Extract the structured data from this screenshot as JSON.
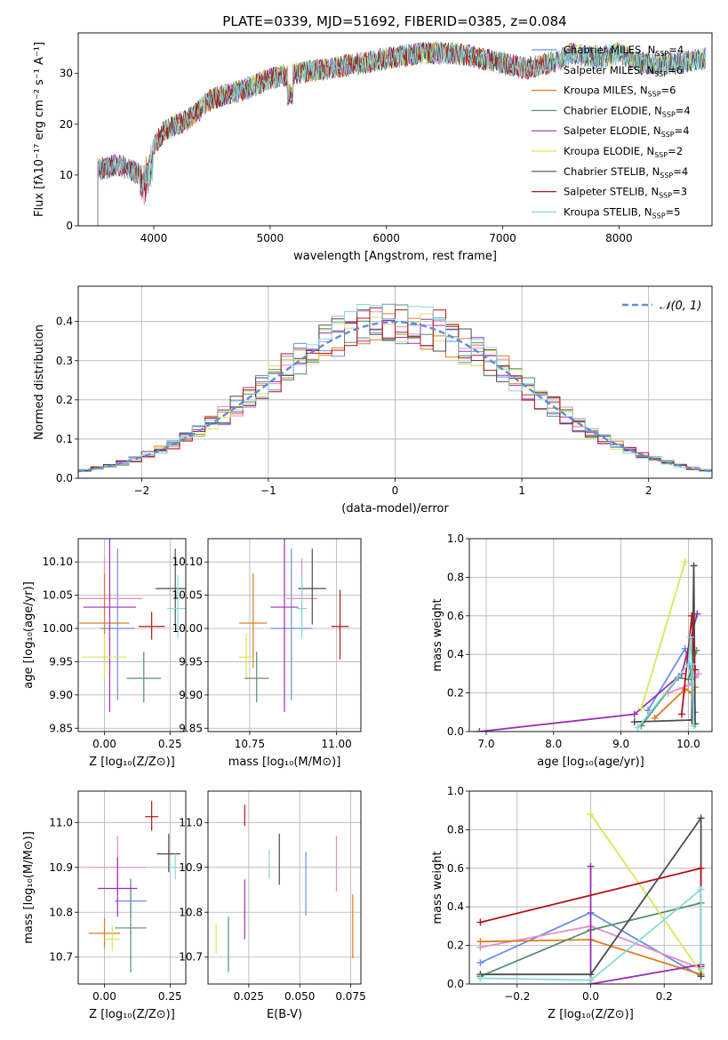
{
  "title": "PLATE=0339, MJD=51692, FIBERID=0385, z=0.084",
  "models": [
    {
      "name": "Chabrier MILES",
      "nssp": "4",
      "color": "#6a8ee8"
    },
    {
      "name": "Salpeter MILES",
      "nssp": "6",
      "color": "#e68ccc"
    },
    {
      "name": "Kroupa MILES",
      "nssp": "6",
      "color": "#e07b20"
    },
    {
      "name": "Chabrier ELODIE",
      "nssp": "4",
      "color": "#55906a"
    },
    {
      "name": "Salpeter ELODIE",
      "nssp": "4",
      "color": "#9b2fb5"
    },
    {
      "name": "Kroupa ELODIE",
      "nssp": "2",
      "color": "#d8e65a"
    },
    {
      "name": "Chabrier STELIB",
      "nssp": "4",
      "color": "#4d4d4d"
    },
    {
      "name": "Salpeter STELIB",
      "nssp": "3",
      "color": "#b51515"
    },
    {
      "name": "Kroupa STELIB",
      "nssp": "5",
      "color": "#85dada"
    }
  ],
  "chart_data": [
    {
      "id": "spectrum",
      "type": "line",
      "xlabel": "wavelength [Angstrom, rest frame]",
      "ylabel": "Flux [fλ10⁻¹⁷ erg cm⁻² s⁻¹ A⁻¹]",
      "xlim": [
        3350,
        8800
      ],
      "ylim": [
        0,
        38
      ],
      "xticks": [
        4000,
        5000,
        6000,
        7000,
        8000
      ],
      "yticks": [
        0,
        10,
        20,
        30
      ],
      "grid": false,
      "legend": "right",
      "continuum": {
        "x": [
          3500,
          3700,
          3900,
          4000,
          4100,
          4300,
          4500,
          4800,
          5000,
          5200,
          5500,
          5800,
          6000,
          6300,
          6600,
          6800,
          7000,
          7200,
          7400,
          7600,
          7800,
          8000,
          8200,
          8500,
          8750
        ],
        "y": [
          11,
          12,
          10,
          16,
          19,
          21,
          25,
          27,
          29,
          30,
          31,
          32,
          33,
          34,
          34,
          33,
          32,
          31,
          32,
          34,
          33,
          34,
          32,
          32,
          33
        ]
      }
    },
    {
      "id": "histogram",
      "type": "bar",
      "xlabel": "(data-model)/error",
      "ylabel": "Normed distribution",
      "xlim": [
        -2.5,
        2.5
      ],
      "ylim": [
        0,
        0.49
      ],
      "xticks": [
        -2,
        -1,
        0,
        1,
        2
      ],
      "yticks": [
        0.0,
        0.1,
        0.2,
        0.3,
        0.4
      ],
      "grid": true,
      "legend": "top-right",
      "curve_label": "𝒩(0, 1)",
      "bin_width": 0.1
    },
    {
      "id": "age_vs_Z",
      "type": "scatter",
      "xlabel": "Z [log₁₀(Z/Z⊙)]",
      "ylabel": "age  [log₁₀(age/yr)]",
      "xlim": [
        -0.1,
        0.31
      ],
      "ylim": [
        9.845,
        10.135
      ],
      "xticks": [
        0.0,
        0.25
      ],
      "yticks": [
        9.85,
        9.9,
        9.95,
        10.0,
        10.05,
        10.1
      ],
      "grid": true,
      "points": [
        [
          0.05,
          10.0,
          0.065,
          0.0,
          0.12
        ],
        [
          0.0,
          10.045,
          0.145,
          0.0,
          0.06
        ],
        [
          0.0,
          10.008,
          0.095,
          0.0,
          0.075
        ],
        [
          0.15,
          9.925,
          0.065,
          0.0,
          0.04
        ],
        [
          0.02,
          10.032,
          0.1,
          0.0,
          0.175
        ],
        [
          0.0,
          9.957,
          0.085,
          0.0,
          0.035
        ],
        [
          0.27,
          10.06,
          0.075,
          0.0,
          0.06
        ],
        [
          0.18,
          10.003,
          0.05,
          0.0,
          0.022
        ],
        [
          0.28,
          10.03,
          0.04,
          0.0,
          0.05
        ]
      ]
    },
    {
      "id": "age_vs_mass",
      "type": "scatter",
      "xlabel": "mass [log₁₀(M/M⊙)]",
      "ylabel": "",
      "xlim": [
        10.63,
        11.07
      ],
      "ylim": [
        9.845,
        10.135
      ],
      "xticks": [
        10.75,
        11.0
      ],
      "yticks": [
        9.85,
        9.9,
        9.95,
        10.0,
        10.05,
        10.1
      ],
      "grid": true,
      "points": [
        [
          10.87,
          10.0,
          0.06,
          0.0,
          0.12
        ],
        [
          10.9,
          10.045,
          0.045,
          0.0,
          0.06
        ],
        [
          10.76,
          10.008,
          0.04,
          0.0,
          0.075
        ],
        [
          10.77,
          9.925,
          0.035,
          0.0,
          0.04
        ],
        [
          10.85,
          10.032,
          0.04,
          0.0,
          0.175
        ],
        [
          10.74,
          9.957,
          0.02,
          0.0,
          0.035
        ],
        [
          10.93,
          10.06,
          0.04,
          0.0,
          0.06
        ],
        [
          11.01,
          10.003,
          0.025,
          0.0,
          0.055
        ],
        [
          10.9,
          10.03,
          0.015,
          0.0,
          0.05
        ]
      ]
    },
    {
      "id": "weight_vs_age",
      "type": "line",
      "xlabel": "age  [log₁₀(age/yr)]",
      "ylabel": "mass weight",
      "xlim": [
        6.75,
        10.35
      ],
      "ylim": [
        0,
        1.0
      ],
      "xticks": [
        7,
        8,
        9,
        10
      ],
      "yticks": [
        0.0,
        0.2,
        0.4,
        0.6,
        0.8,
        1.0
      ],
      "grid": true,
      "series": [
        {
          "x": [
            9.4,
            9.95,
            10.02,
            10.1
          ],
          "y": [
            0.11,
            0.43,
            0.34,
            0.1
          ]
        },
        {
          "x": [
            9.7,
            10.0,
            10.1,
            10.15
          ],
          "y": [
            0.2,
            0.24,
            0.28,
            0.3
          ]
        },
        {
          "x": [
            9.5,
            9.95,
            10.05,
            10.1
          ],
          "y": [
            0.07,
            0.22,
            0.2,
            0.23
          ]
        },
        {
          "x": [
            9.3,
            9.85,
            10.0,
            10.12
          ],
          "y": [
            0.03,
            0.28,
            0.27,
            0.42
          ]
        },
        {
          "x": [
            6.9,
            9.2,
            9.9,
            10.13
          ],
          "y": [
            0.0,
            0.09,
            0.3,
            0.61
          ]
        },
        {
          "x": [
            9.95,
            9.3
          ],
          "y": [
            0.88,
            0.12
          ]
        },
        {
          "x": [
            9.2,
            10.05,
            10.08,
            10.1
          ],
          "y": [
            0.05,
            0.06,
            0.86,
            0.04
          ]
        },
        {
          "x": [
            9.9,
            10.05,
            10.1
          ],
          "y": [
            0.09,
            0.6,
            0.32
          ]
        },
        {
          "x": [
            9.25,
            10.0,
            10.03,
            10.05,
            10.08
          ],
          "y": [
            0.02,
            0.35,
            0.49,
            0.35,
            0.03
          ]
        }
      ]
    },
    {
      "id": "mass_vs_Z",
      "type": "scatter",
      "xlabel": "Z [log₁₀(Z/Z⊙)]",
      "ylabel": "mass [log₁₀(M/M⊙)]",
      "xlim": [
        -0.1,
        0.31
      ],
      "ylim": [
        10.64,
        11.07
      ],
      "xticks": [
        0.0,
        0.25
      ],
      "yticks": [
        10.7,
        10.8,
        10.9,
        11.0
      ],
      "grid": true,
      "points": [
        [
          0.1,
          10.825,
          0.06,
          0.0,
          0.04
        ],
        [
          0.05,
          10.9,
          0.11,
          0.0,
          0.07
        ],
        [
          0.0,
          10.753,
          0.06,
          0.0,
          0.035
        ],
        [
          0.1,
          10.765,
          0.06,
          0.0,
          0.11
        ],
        [
          0.05,
          10.853,
          0.075,
          0.0,
          0.07
        ],
        [
          0.03,
          10.74,
          0.03,
          0.0,
          0.03
        ],
        [
          0.245,
          10.93,
          0.045,
          0.0,
          0.045
        ],
        [
          0.18,
          11.013,
          0.025,
          0.0,
          0.035
        ],
        [
          0.27,
          10.9,
          0.02,
          0.0,
          0.03
        ]
      ]
    },
    {
      "id": "mass_vs_ebv",
      "type": "scatter",
      "xlabel": "E(B-V)",
      "ylabel": "",
      "xlim": [
        0.005,
        0.08
      ],
      "ylim": [
        10.64,
        11.07
      ],
      "xticks": [
        0.025,
        0.05,
        0.075
      ],
      "yticks": [
        10.7,
        10.8,
        10.9,
        11.0
      ],
      "grid": true,
      "points": [
        [
          0.053,
          10.86,
          0.0,
          0.0,
          0.075
        ],
        [
          0.068,
          10.905,
          0.0,
          0.0,
          0.065
        ],
        [
          0.076,
          10.765,
          0.0,
          0.0,
          0.075
        ],
        [
          0.015,
          10.725,
          0.0,
          0.0,
          0.065
        ],
        [
          0.023,
          10.803,
          0.0,
          0.0,
          0.07
        ],
        [
          0.009,
          10.74,
          0.0,
          0.0,
          0.035
        ],
        [
          0.04,
          10.915,
          0.0,
          0.0,
          0.06
        ],
        [
          0.023,
          11.015,
          0.0,
          0.0,
          0.025
        ],
        [
          0.035,
          10.905,
          0.0,
          0.0,
          0.035
        ]
      ]
    },
    {
      "id": "weight_vs_Z",
      "type": "line",
      "xlabel": "Z [log₁₀(Z/Z⊙)]",
      "ylabel": "mass weight",
      "xlim": [
        -0.33,
        0.33
      ],
      "ylim": [
        0,
        1.0
      ],
      "xticks": [
        -0.2,
        0.0,
        0.2
      ],
      "yticks": [
        0.0,
        0.2,
        0.4,
        0.6,
        0.8,
        1.0
      ],
      "grid": true,
      "series": [
        {
          "x": [
            -0.3,
            0.0,
            0.3
          ],
          "y": [
            0.11,
            0.37,
            0.04
          ]
        },
        {
          "x": [
            -0.3,
            0.0,
            0.3
          ],
          "y": [
            0.19,
            0.3,
            0.08
          ]
        },
        {
          "x": [
            -0.3,
            0.0,
            0.3
          ],
          "y": [
            0.22,
            0.23,
            0.05
          ]
        },
        {
          "x": [
            -0.3,
            0.0,
            0.3
          ],
          "y": [
            0.04,
            0.28,
            0.42
          ]
        },
        {
          "x": [
            0.0,
            0.0,
            0.3
          ],
          "y": [
            0.61,
            0.0,
            0.1
          ]
        },
        {
          "x": [
            0.0,
            0.3
          ],
          "y": [
            0.88,
            0.06
          ]
        },
        {
          "x": [
            -0.3,
            0.0,
            0.3,
            0.3
          ],
          "y": [
            0.05,
            0.05,
            0.86,
            0.04
          ]
        },
        {
          "x": [
            -0.3,
            0.3,
            0.3
          ],
          "y": [
            0.32,
            0.6,
            0.09
          ]
        },
        {
          "x": [
            -0.3,
            0.0,
            0.3,
            0.3
          ],
          "y": [
            0.03,
            0.02,
            0.49,
            0.08
          ]
        }
      ]
    }
  ]
}
